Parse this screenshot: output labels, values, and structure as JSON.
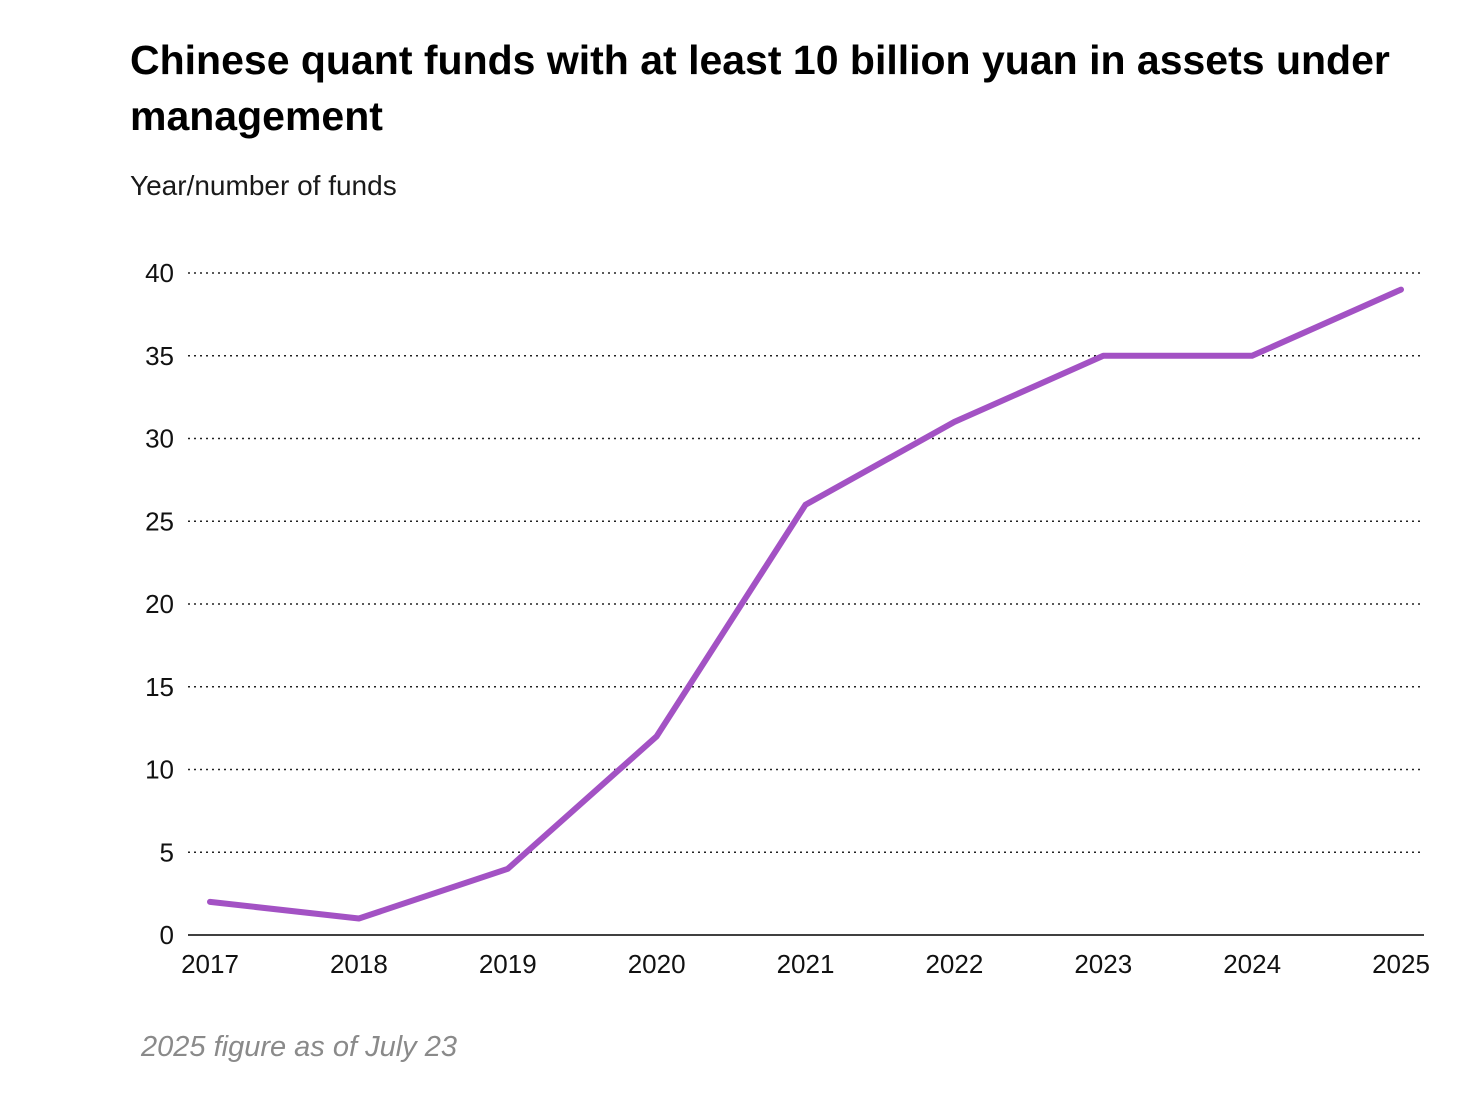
{
  "title": "Chinese quant funds with at least 10 billion yuan in assets under management",
  "subtitle": "Year/number of funds",
  "note": "2025 figure as of July 23",
  "colors": {
    "line": "#a352c4",
    "text": "#000000",
    "note": "#8a8a8a",
    "grid": "#222222"
  },
  "chart_data": {
    "type": "line",
    "title": "Chinese quant funds with at least 10 billion yuan in assets under management",
    "subtitle": "Year/number of funds",
    "xlabel": "",
    "ylabel": "",
    "categories": [
      "2017",
      "2018",
      "2019",
      "2020",
      "2021",
      "2022",
      "2023",
      "2024",
      "2025"
    ],
    "series": [
      {
        "values": [
          2,
          1,
          4,
          12,
          26,
          31,
          35,
          35,
          39
        ]
      }
    ],
    "ylim": [
      0,
      40
    ],
    "yticks": [
      "0",
      "5",
      "10",
      "15",
      "20",
      "25",
      "30",
      "35",
      "40"
    ],
    "grid": true,
    "grid_style": "dotted",
    "legend": "none"
  }
}
